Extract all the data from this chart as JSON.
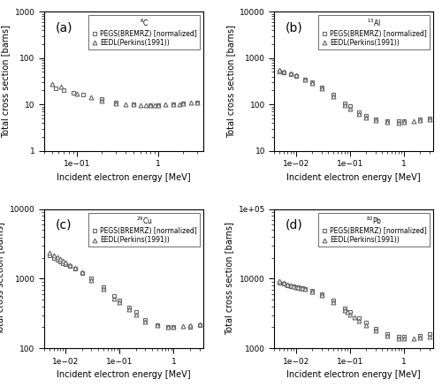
{
  "panels": [
    {
      "label": "(a)",
      "material": "$^{6}$C",
      "xlim": [
        0.04,
        3.5
      ],
      "ylim": [
        1,
        1000
      ],
      "xlabel": "Incident electron energy [MeV]",
      "ylabel": "Total cross section [barns]",
      "pegs_x": [
        0.055,
        0.07,
        0.09,
        0.12,
        0.2,
        0.3,
        0.5,
        0.8,
        1.0,
        1.5,
        2.0,
        3.0
      ],
      "pegs_y": [
        22,
        20,
        18,
        16,
        13,
        11,
        10,
        9.8,
        9.8,
        10.2,
        10.5,
        11
      ],
      "eedl_x": [
        0.05,
        0.065,
        0.1,
        0.15,
        0.2,
        0.3,
        0.4,
        0.5,
        0.6,
        0.7,
        0.8,
        0.9,
        1.0,
        1.2,
        1.5,
        1.8,
        2.0,
        2.5,
        3.0
      ],
      "eedl_y": [
        28,
        24,
        17,
        14,
        12,
        10.5,
        10.2,
        10.0,
        9.8,
        9.7,
        9.7,
        9.7,
        9.7,
        9.9,
        10.0,
        10.2,
        10.4,
        10.8,
        11.2
      ]
    },
    {
      "label": "(b)",
      "material": "$^{13}$Al",
      "xlim": [
        0.004,
        3.5
      ],
      "ylim": [
        10,
        10000
      ],
      "xlabel": "Incident electron energy [MeV]",
      "ylabel": "Total cross section [barns]",
      "pegs_x": [
        0.005,
        0.006,
        0.008,
        0.01,
        0.015,
        0.02,
        0.03,
        0.05,
        0.08,
        0.1,
        0.15,
        0.2,
        0.3,
        0.5,
        0.8,
        1.0,
        2.0,
        3.0
      ],
      "pegs_y": [
        500,
        480,
        440,
        410,
        350,
        300,
        230,
        160,
        105,
        92,
        68,
        57,
        48,
        43,
        43,
        44,
        47,
        50
      ],
      "eedl_x": [
        0.005,
        0.006,
        0.008,
        0.01,
        0.015,
        0.02,
        0.03,
        0.05,
        0.08,
        0.1,
        0.15,
        0.2,
        0.3,
        0.5,
        0.8,
        1.0,
        1.5,
        2.0,
        3.0
      ],
      "eedl_y": [
        560,
        510,
        460,
        420,
        350,
        290,
        220,
        148,
        97,
        82,
        63,
        53,
        46,
        41,
        40,
        41,
        43,
        45,
        48
      ]
    },
    {
      "label": "(c)",
      "material": "$^{29}$Cu",
      "xlim": [
        0.004,
        3.5
      ],
      "ylim": [
        100,
        10000
      ],
      "xlabel": "Incident electron energy [MeV]",
      "ylabel": "Total cross section [barns]",
      "pegs_x": [
        0.005,
        0.006,
        0.007,
        0.008,
        0.009,
        0.01,
        0.012,
        0.015,
        0.02,
        0.03,
        0.05,
        0.08,
        0.1,
        0.15,
        0.2,
        0.3,
        0.5,
        0.8,
        1.0,
        2.0,
        3.0
      ],
      "pegs_y": [
        2200,
        2000,
        1870,
        1760,
        1690,
        1620,
        1510,
        1400,
        1210,
        1010,
        760,
        560,
        490,
        390,
        330,
        255,
        215,
        200,
        200,
        205,
        215
      ],
      "eedl_x": [
        0.005,
        0.006,
        0.007,
        0.008,
        0.009,
        0.01,
        0.012,
        0.015,
        0.02,
        0.03,
        0.05,
        0.08,
        0.1,
        0.15,
        0.2,
        0.3,
        0.5,
        0.8,
        1.0,
        1.5,
        2.0,
        3.0
      ],
      "eedl_y": [
        2400,
        2200,
        2040,
        1920,
        1820,
        1730,
        1580,
        1440,
        1230,
        970,
        710,
        510,
        460,
        365,
        305,
        245,
        215,
        205,
        205,
        210,
        215,
        220
      ]
    },
    {
      "label": "(d)",
      "material": "$^{82}$Pb",
      "xlim": [
        0.004,
        3.5
      ],
      "ylim": [
        1000,
        100000
      ],
      "xlabel": "Incident electron energy [MeV]",
      "ylabel": "Total cross section [barns]",
      "pegs_x": [
        0.005,
        0.006,
        0.007,
        0.008,
        0.009,
        0.01,
        0.011,
        0.012,
        0.013,
        0.015,
        0.02,
        0.03,
        0.05,
        0.08,
        0.1,
        0.15,
        0.2,
        0.3,
        0.5,
        0.8,
        1.0,
        2.0,
        3.0
      ],
      "pegs_y": [
        8800,
        8400,
        8100,
        7900,
        7700,
        7600,
        7500,
        7400,
        7300,
        7100,
        6700,
        6000,
        4900,
        3800,
        3300,
        2700,
        2350,
        1900,
        1600,
        1480,
        1480,
        1530,
        1590
      ],
      "eedl_x": [
        0.005,
        0.006,
        0.007,
        0.008,
        0.009,
        0.01,
        0.011,
        0.012,
        0.013,
        0.015,
        0.02,
        0.03,
        0.05,
        0.08,
        0.09,
        0.1,
        0.12,
        0.15,
        0.2,
        0.3,
        0.5,
        0.8,
        1.0,
        1.5,
        2.0,
        3.0
      ],
      "eedl_y": [
        9200,
        8700,
        8300,
        8000,
        7800,
        7600,
        7500,
        7400,
        7300,
        7100,
        6600,
        5800,
        4600,
        3500,
        3300,
        3100,
        2800,
        2500,
        2150,
        1800,
        1500,
        1380,
        1380,
        1400,
        1420,
        1460
      ]
    }
  ],
  "legend_pegs": "PEGS(BREMRZ) [normalized]",
  "legend_eedl": "EEDL(Perkins(1991))",
  "marker_pegs": "s",
  "marker_eedl": "^",
  "marker_size": 3.5,
  "marker_color": "#666666",
  "marker_facecolor": "white",
  "fontsize_label": 7,
  "fontsize_tick": 6.5,
  "fontsize_legend": 5.5,
  "fontsize_panel_label": 10
}
